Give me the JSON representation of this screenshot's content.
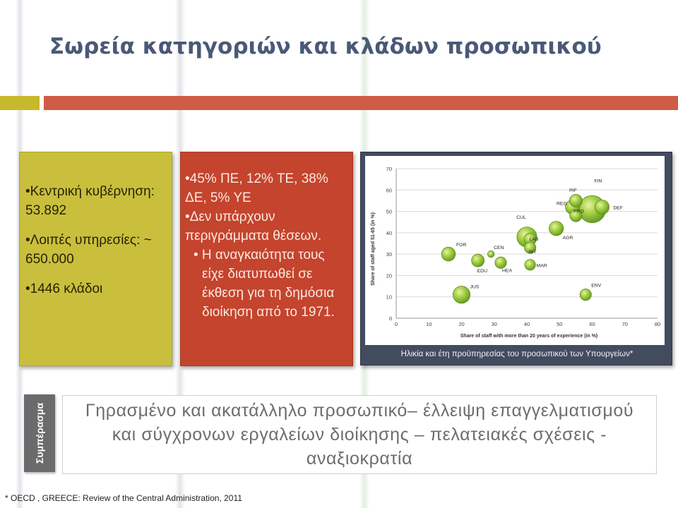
{
  "slide": {
    "title": "Σωρεία κατηγοριών και κλάδων προσωπικού",
    "colors": {
      "title": "#4a5978",
      "accent_yellow": "#c7b82c",
      "accent_red": "#cf5d45"
    }
  },
  "left_box": {
    "items": [
      "•Κεντρική κυβέρνηση: 53.892",
      "•Λοιπές υπηρεσίες: ~ 650.000",
      "•1446 κλάδοι"
    ]
  },
  "middle_box": {
    "items": [
      "•45% ΠΕ, 12% ΤΕ, 38% ΔΕ,  5% ΥΕ",
      "•Δεν υπάρχουν περιγράμματα θέσεων."
    ],
    "sub_items": [
      "• Η αναγκαιότητα τους είχε διατυπωθεί σε έκθεση για τη δημόσια διοίκηση από το 1971."
    ]
  },
  "chart": {
    "caption": "Ηλικία και έτη προϋπηρεσίας του προσωπικού των Υπουργείων*"
  },
  "chart_data": {
    "type": "scatter",
    "xlabel": "Share of staff with more than 20 years of experience (in %)",
    "ylabel": "Share of staff aged 51-65 (in %)",
    "xlim": [
      0,
      80
    ],
    "ylim": [
      0,
      70
    ],
    "xticks": [
      "0",
      "10",
      "20",
      "30",
      "40",
      "50",
      "60",
      "70",
      "80"
    ],
    "yticks": [
      "0",
      "10",
      "20",
      "30",
      "40",
      "50",
      "60",
      "70"
    ],
    "grid": true,
    "bubble_color": "#8dc63f",
    "points": [
      {
        "label": "FIN",
        "x": 60,
        "y": 51,
        "size": 5.0
      },
      {
        "label": "DEF",
        "x": 63,
        "y": 52,
        "size": 1.4
      },
      {
        "label": "INF",
        "x": 55,
        "y": 55,
        "size": 1.1
      },
      {
        "label": "REG",
        "x": 54,
        "y": 52,
        "size": 1.4
      },
      {
        "label": "PRO",
        "x": 55,
        "y": 48,
        "size": 1.0
      },
      {
        "label": "AGR",
        "x": 49,
        "y": 42,
        "size": 1.4
      },
      {
        "label": "CUL",
        "x": 40,
        "y": 38,
        "size": 2.7
      },
      {
        "label": "LAB",
        "x": 41,
        "y": 37,
        "size": 1.0
      },
      {
        "label": "INT",
        "x": 41,
        "y": 33,
        "size": 0.9
      },
      {
        "label": "FOR",
        "x": 16,
        "y": 30,
        "size": 1.3
      },
      {
        "label": "CEN",
        "x": 29,
        "y": 30,
        "size": 0.3
      },
      {
        "label": "EDU",
        "x": 25,
        "y": 27,
        "size": 1.1
      },
      {
        "label": "HEA",
        "x": 32,
        "y": 26,
        "size": 0.9
      },
      {
        "label": "MAR",
        "x": 41,
        "y": 25,
        "size": 0.8
      },
      {
        "label": "JUS",
        "x": 20,
        "y": 11,
        "size": 2.0
      },
      {
        "label": "ENV",
        "x": 58,
        "y": 11,
        "size": 0.9
      }
    ]
  },
  "conclusion": {
    "tab_label": "Συμπέρασμα",
    "text": "Γηρασμένο και ακατάλληλο προσωπικό– έλλειψη επαγγελματισμού και σύγχρονων  εργαλείων διοίκησης – πελατειακές σχέσεις - αναξιοκρατία"
  },
  "footnote": "* OECD , GREECE: Review of the Central Administration, 2011"
}
